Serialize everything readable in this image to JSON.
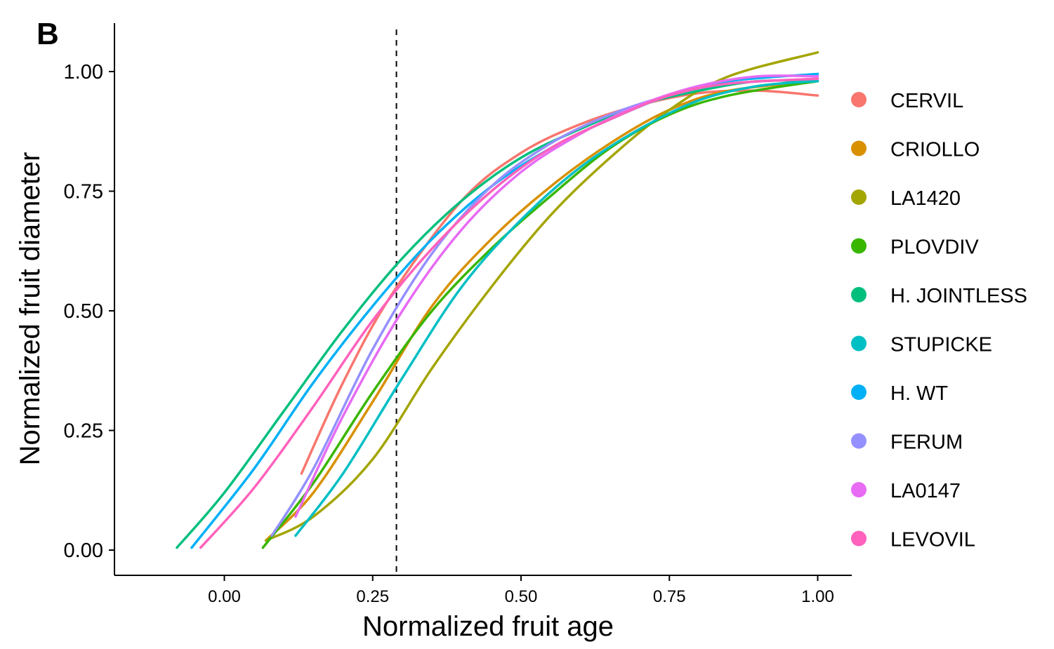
{
  "panel_label": "B",
  "chart_data": {
    "type": "line",
    "xlabel": "Normalized fruit age",
    "ylabel": "Normalized fruit diameter",
    "xlim": [
      -0.18,
      1.06
    ],
    "ylim": [
      -0.05,
      1.1
    ],
    "xticks": [
      "0.00",
      "0.25",
      "0.50",
      "0.75",
      "1.00"
    ],
    "xtick_values": [
      0,
      0.25,
      0.5,
      0.75,
      1
    ],
    "yticks": [
      "0.00",
      "0.25",
      "0.50",
      "0.75",
      "1.00"
    ],
    "ytick_values": [
      0,
      0.25,
      0.5,
      0.75,
      1
    ],
    "vline": 0.29,
    "grid": false,
    "legend_position": "right",
    "series": [
      {
        "name": "CERVIL",
        "color": "#F8766D",
        "x": [
          0.13,
          0.2,
          0.28,
          0.4,
          0.5,
          0.6,
          0.7,
          0.8,
          0.9,
          1.0
        ],
        "y": [
          0.16,
          0.35,
          0.53,
          0.73,
          0.83,
          0.89,
          0.93,
          0.955,
          0.96,
          0.95
        ]
      },
      {
        "name": "CRIOLLO",
        "color": "#D89000",
        "x": [
          0.07,
          0.15,
          0.25,
          0.35,
          0.45,
          0.55,
          0.65,
          0.75,
          0.85,
          1.0
        ],
        "y": [
          0.02,
          0.12,
          0.31,
          0.51,
          0.65,
          0.76,
          0.85,
          0.92,
          0.96,
          0.98
        ]
      },
      {
        "name": "LA1420",
        "color": "#A3A500",
        "x": [
          0.07,
          0.15,
          0.25,
          0.35,
          0.45,
          0.55,
          0.65,
          0.75,
          0.85,
          1.0
        ],
        "y": [
          0.02,
          0.07,
          0.19,
          0.38,
          0.55,
          0.7,
          0.82,
          0.92,
          0.99,
          1.04
        ]
      },
      {
        "name": "PLOVDIV",
        "color": "#39B600",
        "x": [
          0.065,
          0.15,
          0.25,
          0.35,
          0.45,
          0.55,
          0.65,
          0.75,
          0.85,
          1.0
        ],
        "y": [
          0.005,
          0.14,
          0.33,
          0.5,
          0.63,
          0.74,
          0.84,
          0.91,
          0.95,
          0.98
        ]
      },
      {
        "name": "H. JOINTLESS",
        "color": "#00BF7D",
        "x": [
          -0.08,
          0.0,
          0.1,
          0.2,
          0.3,
          0.4,
          0.5,
          0.6,
          0.7,
          0.8,
          0.9,
          1.0
        ],
        "y": [
          0.005,
          0.12,
          0.29,
          0.46,
          0.61,
          0.73,
          0.82,
          0.88,
          0.93,
          0.96,
          0.98,
          0.98
        ]
      },
      {
        "name": "STUPICKE",
        "color": "#00BFC4",
        "x": [
          0.12,
          0.2,
          0.3,
          0.4,
          0.5,
          0.6,
          0.7,
          0.8,
          0.9,
          1.0
        ],
        "y": [
          0.03,
          0.16,
          0.36,
          0.55,
          0.69,
          0.8,
          0.88,
          0.94,
          0.97,
          0.98
        ]
      },
      {
        "name": "H. WT",
        "color": "#00B0F6",
        "x": [
          -0.055,
          0.05,
          0.15,
          0.25,
          0.35,
          0.45,
          0.55,
          0.65,
          0.75,
          0.85,
          1.0
        ],
        "y": [
          0.005,
          0.17,
          0.35,
          0.51,
          0.65,
          0.76,
          0.84,
          0.9,
          0.95,
          0.98,
          0.995
        ]
      },
      {
        "name": "FERUM",
        "color": "#9590FF",
        "x": [
          0.08,
          0.15,
          0.25,
          0.35,
          0.45,
          0.55,
          0.65,
          0.75,
          0.85,
          1.0
        ],
        "y": [
          0.03,
          0.17,
          0.42,
          0.62,
          0.76,
          0.85,
          0.91,
          0.95,
          0.975,
          0.985
        ]
      },
      {
        "name": "LA0147",
        "color": "#E76BF3",
        "x": [
          0.12,
          0.2,
          0.3,
          0.4,
          0.5,
          0.6,
          0.7,
          0.8,
          0.9,
          1.0
        ],
        "y": [
          0.07,
          0.28,
          0.5,
          0.67,
          0.79,
          0.87,
          0.93,
          0.97,
          0.99,
          0.99
        ]
      },
      {
        "name": "LEVOVIL",
        "color": "#FF62BC",
        "x": [
          -0.04,
          0.05,
          0.15,
          0.25,
          0.35,
          0.45,
          0.55,
          0.65,
          0.75,
          0.85,
          1.0
        ],
        "y": [
          0.005,
          0.13,
          0.3,
          0.48,
          0.63,
          0.75,
          0.84,
          0.9,
          0.95,
          0.975,
          0.985
        ]
      }
    ]
  }
}
